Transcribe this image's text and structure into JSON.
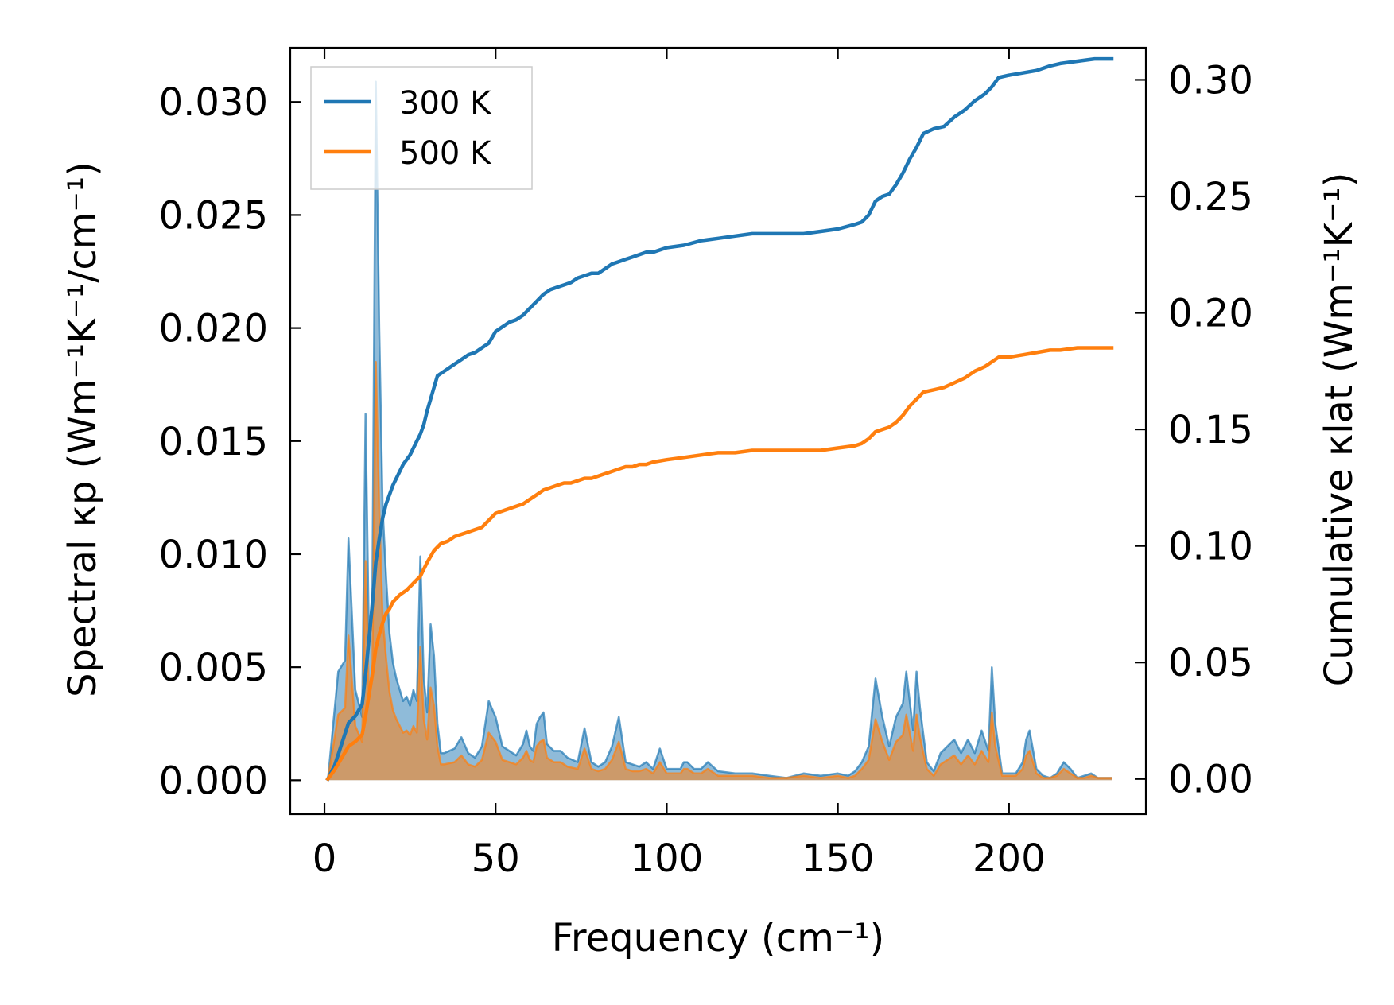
{
  "chart_data": {
    "type": "area",
    "xlabel": "Frequency (cm⁻¹)",
    "ylabel_left": "Spectral κp (Wm⁻¹K⁻¹/cm⁻¹)",
    "ylabel_right": "Cumulative κlat (Wm⁻¹K⁻¹)",
    "xlim": [
      -10,
      240
    ],
    "ylim_left": [
      -0.0015,
      0.0324
    ],
    "ylim_right": [
      -0.0151,
      0.3138
    ],
    "x_ticks": [
      0,
      50,
      100,
      150,
      200
    ],
    "x_tick_labels": [
      "0",
      "50",
      "100",
      "150",
      "200"
    ],
    "y_left_ticks": [
      0,
      0.005,
      0.01,
      0.015,
      0.02,
      0.025,
      0.03
    ],
    "y_left_tick_labels": [
      "0.000",
      "0.005",
      "0.010",
      "0.015",
      "0.020",
      "0.025",
      "0.030"
    ],
    "y_right_ticks": [
      0,
      0.05,
      0.1,
      0.15,
      0.2,
      0.25,
      0.3
    ],
    "y_right_tick_labels": [
      "0.00",
      "0.05",
      "0.10",
      "0.15",
      "0.20",
      "0.25",
      "0.30"
    ],
    "legend_position": "top-left",
    "grid": false,
    "series": [
      {
        "name": "300 K",
        "color": "#1f77b4",
        "spectral": {
          "x": [
            1,
            4,
            6,
            7,
            9,
            11,
            12,
            13,
            14,
            15,
            16,
            17,
            18,
            19,
            20,
            21,
            22,
            23,
            24,
            25,
            26,
            27,
            28,
            29,
            30,
            31,
            32,
            33,
            34,
            35,
            38,
            40,
            42,
            44,
            46,
            48,
            50,
            52,
            54,
            56,
            58,
            59,
            60,
            61,
            62,
            63,
            64,
            65,
            67,
            69,
            71,
            74,
            76,
            78,
            80,
            82,
            84,
            86,
            88,
            90,
            92,
            94,
            96,
            98,
            100,
            102,
            104,
            105,
            106,
            108,
            110,
            112,
            115,
            120,
            125,
            130,
            135,
            140,
            145,
            150,
            153,
            155,
            157,
            159,
            161,
            163,
            165,
            167,
            169,
            170,
            171,
            172,
            173,
            174,
            176,
            178,
            180,
            182,
            184,
            186,
            188,
            190,
            192,
            194,
            195,
            196,
            198,
            200,
            202,
            204,
            205,
            206,
            208,
            210,
            212,
            214,
            216,
            218,
            220,
            222,
            224,
            226,
            230
          ],
          "y": [
            0.0,
            0.0048,
            0.0053,
            0.0107,
            0.004,
            0.0028,
            0.0162,
            0.006,
            0.0085,
            0.0309,
            0.02,
            0.012,
            0.009,
            0.0065,
            0.0052,
            0.0045,
            0.004,
            0.0035,
            0.0037,
            0.0033,
            0.004,
            0.0035,
            0.0099,
            0.0045,
            0.003,
            0.0069,
            0.0055,
            0.0025,
            0.0012,
            0.0012,
            0.0014,
            0.0019,
            0.0012,
            0.001,
            0.0015,
            0.0035,
            0.0028,
            0.0015,
            0.0013,
            0.0011,
            0.0016,
            0.0022,
            0.0015,
            0.0013,
            0.0025,
            0.0028,
            0.003,
            0.0016,
            0.0013,
            0.0013,
            0.001,
            0.0008,
            0.0023,
            0.0008,
            0.0006,
            0.0008,
            0.0015,
            0.0028,
            0.0008,
            0.0007,
            0.0006,
            0.0008,
            0.0005,
            0.0014,
            0.0005,
            0.0005,
            0.0005,
            0.0008,
            0.0008,
            0.0005,
            0.0005,
            0.0008,
            0.0004,
            0.0003,
            0.0003,
            0.0002,
            0.0001,
            0.0003,
            0.0002,
            0.0003,
            0.0002,
            0.0004,
            0.0008,
            0.0015,
            0.0045,
            0.0028,
            0.0015,
            0.0028,
            0.0034,
            0.0048,
            0.0035,
            0.0022,
            0.0048,
            0.0032,
            0.0008,
            0.0004,
            0.0012,
            0.0015,
            0.0018,
            0.0012,
            0.0018,
            0.0012,
            0.0022,
            0.0013,
            0.005,
            0.0025,
            0.0003,
            0.0003,
            0.0003,
            0.0008,
            0.0018,
            0.0022,
            0.0005,
            0.0002,
            0.0001,
            0.0003,
            0.0008,
            0.0005,
            0.0001,
            0.0002,
            0.0003,
            0.0001,
            0.0001
          ]
        },
        "cumulative": {
          "x": [
            1,
            3,
            5,
            7,
            9,
            11,
            12,
            13,
            14,
            15,
            16,
            17,
            18,
            19,
            20,
            21,
            22,
            23,
            24,
            25,
            26,
            27,
            28,
            29,
            30,
            31,
            32,
            33,
            35,
            38,
            40,
            42,
            44,
            46,
            48,
            50,
            52,
            54,
            56,
            58,
            60,
            62,
            64,
            66,
            68,
            70,
            72,
            74,
            76,
            78,
            80,
            82,
            84,
            86,
            88,
            90,
            92,
            94,
            96,
            100,
            105,
            110,
            115,
            120,
            125,
            130,
            135,
            140,
            145,
            150,
            155,
            157,
            159,
            161,
            163,
            165,
            167,
            169,
            171,
            173,
            175,
            178,
            181,
            184,
            187,
            190,
            193,
            195,
            197,
            200,
            204,
            208,
            212,
            215,
            220,
            225,
            230
          ],
          "y": [
            0.0,
            0.006,
            0.015,
            0.024,
            0.027,
            0.032,
            0.045,
            0.06,
            0.075,
            0.093,
            0.103,
            0.112,
            0.118,
            0.122,
            0.126,
            0.129,
            0.132,
            0.135,
            0.137,
            0.139,
            0.142,
            0.145,
            0.148,
            0.152,
            0.158,
            0.163,
            0.168,
            0.173,
            0.175,
            0.178,
            0.18,
            0.182,
            0.183,
            0.185,
            0.187,
            0.192,
            0.194,
            0.196,
            0.197,
            0.199,
            0.202,
            0.205,
            0.208,
            0.21,
            0.211,
            0.212,
            0.213,
            0.215,
            0.216,
            0.217,
            0.217,
            0.219,
            0.221,
            0.222,
            0.223,
            0.224,
            0.225,
            0.226,
            0.226,
            0.228,
            0.229,
            0.231,
            0.232,
            0.233,
            0.234,
            0.234,
            0.234,
            0.234,
            0.235,
            0.236,
            0.238,
            0.239,
            0.242,
            0.248,
            0.25,
            0.251,
            0.255,
            0.26,
            0.266,
            0.271,
            0.277,
            0.279,
            0.28,
            0.284,
            0.287,
            0.291,
            0.294,
            0.297,
            0.301,
            0.302,
            0.303,
            0.304,
            0.306,
            0.307,
            0.308,
            0.309,
            0.309
          ]
        }
      },
      {
        "name": "500 K",
        "color": "#ff7f0e",
        "spectral": {
          "x": [
            1,
            4,
            6,
            7,
            9,
            11,
            12,
            13,
            14,
            15,
            16,
            17,
            18,
            19,
            20,
            21,
            22,
            23,
            24,
            25,
            26,
            27,
            28,
            29,
            30,
            31,
            32,
            33,
            34,
            35,
            38,
            40,
            42,
            44,
            46,
            48,
            50,
            52,
            54,
            56,
            58,
            59,
            60,
            61,
            62,
            63,
            64,
            65,
            67,
            69,
            71,
            74,
            76,
            78,
            80,
            82,
            84,
            86,
            88,
            90,
            92,
            94,
            96,
            98,
            100,
            102,
            104,
            105,
            106,
            108,
            110,
            112,
            115,
            120,
            125,
            130,
            135,
            140,
            145,
            150,
            153,
            155,
            157,
            159,
            161,
            163,
            165,
            167,
            169,
            170,
            171,
            172,
            173,
            174,
            176,
            178,
            180,
            182,
            184,
            186,
            188,
            190,
            192,
            194,
            195,
            196,
            198,
            200,
            202,
            204,
            205,
            206,
            208,
            210,
            212,
            214,
            216,
            218,
            220,
            222,
            224,
            226,
            230
          ],
          "y": [
            0.0,
            0.0029,
            0.0032,
            0.0064,
            0.0024,
            0.0017,
            0.0097,
            0.0036,
            0.0051,
            0.0185,
            0.012,
            0.0072,
            0.0054,
            0.0039,
            0.0031,
            0.0027,
            0.0024,
            0.0021,
            0.0022,
            0.002,
            0.0024,
            0.0021,
            0.0059,
            0.0027,
            0.0018,
            0.0041,
            0.0033,
            0.0015,
            0.0007,
            0.0007,
            0.0008,
            0.0011,
            0.0007,
            0.0006,
            0.0009,
            0.0021,
            0.0017,
            0.0009,
            0.0008,
            0.0007,
            0.001,
            0.0013,
            0.0009,
            0.0008,
            0.0015,
            0.0017,
            0.0018,
            0.001,
            0.0008,
            0.0008,
            0.0006,
            0.0005,
            0.0014,
            0.0005,
            0.0004,
            0.0005,
            0.0009,
            0.0017,
            0.0005,
            0.0004,
            0.0004,
            0.0005,
            0.0003,
            0.0008,
            0.0003,
            0.0003,
            0.0003,
            0.0005,
            0.0005,
            0.0003,
            0.0003,
            0.0005,
            0.0002,
            0.0002,
            0.0002,
            0.0001,
            0.0001,
            0.0002,
            0.0001,
            0.0002,
            0.0001,
            0.0002,
            0.0005,
            0.0009,
            0.0027,
            0.0017,
            0.0009,
            0.0017,
            0.002,
            0.0029,
            0.0021,
            0.0013,
            0.0029,
            0.0019,
            0.0005,
            0.0002,
            0.0007,
            0.0009,
            0.0011,
            0.0007,
            0.0011,
            0.0007,
            0.0013,
            0.0008,
            0.003,
            0.0015,
            0.0002,
            0.0002,
            0.0002,
            0.0005,
            0.0011,
            0.0013,
            0.0003,
            0.0001,
            0.0001,
            0.0002,
            0.0005,
            0.0003,
            0.0001,
            0.0001,
            0.0002,
            0.0001,
            0.0001
          ]
        },
        "cumulative": {
          "x": [
            1,
            3,
            5,
            7,
            9,
            11,
            12,
            13,
            14,
            15,
            16,
            17,
            18,
            19,
            20,
            22,
            24,
            26,
            28,
            30,
            32,
            34,
            36,
            38,
            40,
            42,
            44,
            46,
            48,
            50,
            52,
            54,
            56,
            58,
            60,
            62,
            64,
            66,
            68,
            70,
            72,
            74,
            76,
            78,
            80,
            82,
            84,
            86,
            88,
            90,
            92,
            94,
            96,
            100,
            105,
            110,
            115,
            120,
            125,
            130,
            135,
            140,
            145,
            150,
            155,
            157,
            159,
            161,
            163,
            165,
            167,
            169,
            171,
            173,
            175,
            178,
            181,
            184,
            187,
            190,
            193,
            195,
            197,
            200,
            204,
            208,
            212,
            215,
            220,
            225,
            230
          ],
          "y": [
            0.0,
            0.004,
            0.009,
            0.014,
            0.016,
            0.019,
            0.027,
            0.036,
            0.045,
            0.056,
            0.062,
            0.067,
            0.071,
            0.073,
            0.076,
            0.079,
            0.081,
            0.084,
            0.087,
            0.093,
            0.098,
            0.101,
            0.102,
            0.104,
            0.105,
            0.106,
            0.107,
            0.108,
            0.111,
            0.114,
            0.115,
            0.116,
            0.117,
            0.118,
            0.12,
            0.122,
            0.124,
            0.125,
            0.126,
            0.127,
            0.127,
            0.128,
            0.129,
            0.129,
            0.13,
            0.131,
            0.132,
            0.133,
            0.134,
            0.134,
            0.135,
            0.135,
            0.136,
            0.137,
            0.138,
            0.139,
            0.14,
            0.14,
            0.141,
            0.141,
            0.141,
            0.141,
            0.141,
            0.142,
            0.143,
            0.144,
            0.146,
            0.149,
            0.15,
            0.151,
            0.153,
            0.156,
            0.16,
            0.163,
            0.166,
            0.167,
            0.168,
            0.17,
            0.172,
            0.175,
            0.177,
            0.179,
            0.181,
            0.181,
            0.182,
            0.183,
            0.184,
            0.184,
            0.185,
            0.185,
            0.185
          ]
        }
      }
    ]
  }
}
